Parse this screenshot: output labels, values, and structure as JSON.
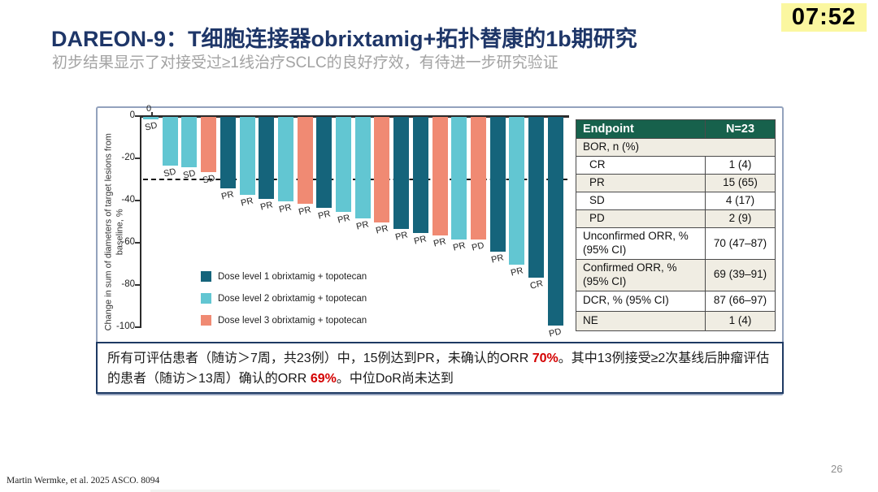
{
  "timer": "07:52",
  "slide": {
    "title": "DAREON-9：T细胞连接器obrixtamig+拓扑替康的1b期研究",
    "subtitle": "初步结果显示了对接受过≥1线治疗SCLC的良好疗效，有待进一步研究验证",
    "footer_citation": "Martin Wermke, et al. 2025 ASCO. 8094",
    "page_number": "26"
  },
  "chart_data": {
    "type": "bar",
    "subtype": "waterfall",
    "ylabel": "Change in sum of diameters of target lesions from baseline, %",
    "ylim": [
      -100,
      0
    ],
    "yticks": [
      0,
      -20,
      -40,
      -60,
      -80,
      -100
    ],
    "reference_line": -30,
    "origin_tick_label": "0",
    "dose_colors": {
      "1": "#15647b",
      "2": "#62c6d2",
      "3": "#f08a73"
    },
    "bars": [
      {
        "value": -1,
        "grade": "SD",
        "dose": 2
      },
      {
        "value": -23,
        "grade": "SD",
        "dose": 2
      },
      {
        "value": -24,
        "grade": "SD",
        "dose": 2
      },
      {
        "value": -26,
        "grade": "SD",
        "dose": 3
      },
      {
        "value": -34,
        "grade": "PR",
        "dose": 1
      },
      {
        "value": -37,
        "grade": "PR",
        "dose": 2
      },
      {
        "value": -39,
        "grade": "PR",
        "dose": 1
      },
      {
        "value": -40,
        "grade": "PR",
        "dose": 2
      },
      {
        "value": -41,
        "grade": "PR",
        "dose": 3
      },
      {
        "value": -43,
        "grade": "PR",
        "dose": 1
      },
      {
        "value": -45,
        "grade": "PR",
        "dose": 2
      },
      {
        "value": -48,
        "grade": "PR",
        "dose": 2
      },
      {
        "value": -50,
        "grade": "PR",
        "dose": 3
      },
      {
        "value": -53,
        "grade": "PR",
        "dose": 1
      },
      {
        "value": -55,
        "grade": "PR",
        "dose": 1
      },
      {
        "value": -56,
        "grade": "PR",
        "dose": 3
      },
      {
        "value": -58,
        "grade": "PR",
        "dose": 2
      },
      {
        "value": -58,
        "grade": "PD",
        "dose": 3
      },
      {
        "value": -64,
        "grade": "PR",
        "dose": 1
      },
      {
        "value": -70,
        "grade": "PR",
        "dose": 2
      },
      {
        "value": -76,
        "grade": "CR",
        "dose": 1
      },
      {
        "value": -99,
        "grade": "PD",
        "dose": 1
      }
    ],
    "legend": [
      {
        "label": "Dose level 1 obrixtamig + topotecan",
        "color": "#15647b"
      },
      {
        "label": "Dose level 2 obrixtamig + topotecan",
        "color": "#62c6d2"
      },
      {
        "label": "Dose level 3 obrixtamig + topotecan",
        "color": "#f08a73"
      }
    ],
    "legend_position": "lower-left-inside"
  },
  "table": {
    "header": [
      "Endpoint",
      "N=23"
    ],
    "rows": [
      {
        "label": "BOR, n (%)",
        "value": "",
        "span": true,
        "indent": false,
        "shaded": true
      },
      {
        "label": "CR",
        "value": "1 (4)",
        "span": false,
        "indent": true,
        "shaded": false
      },
      {
        "label": "PR",
        "value": "15 (65)",
        "span": false,
        "indent": true,
        "shaded": true
      },
      {
        "label": "SD",
        "value": "4 (17)",
        "span": false,
        "indent": true,
        "shaded": false
      },
      {
        "label": "PD",
        "value": "2 (9)",
        "span": false,
        "indent": true,
        "shaded": true
      },
      {
        "label": "Unconfirmed ORR, % (95% CI)",
        "value": "70 (47–87)",
        "span": false,
        "indent": false,
        "shaded": false
      },
      {
        "label": "Confirmed ORR, % (95% CI)",
        "value": "69 (39–91)",
        "span": false,
        "indent": false,
        "shaded": true
      },
      {
        "label": "DCR, % (95% CI)",
        "value": "87 (66–97)",
        "span": false,
        "indent": false,
        "shaded": false
      },
      {
        "label": "NE",
        "value": "1 (4)",
        "span": false,
        "indent": false,
        "shaded": true
      }
    ]
  },
  "summary_box": {
    "segments": [
      {
        "text": "所有可评估患者（随访＞7周，共23例）中，15例达到PR，未确认的ORR ",
        "style": "normal"
      },
      {
        "text": "70%",
        "style": "red"
      },
      {
        "text": "。其中13例接受≥2次基线后肿瘤评估的患者（随访＞13周）确认的ORR ",
        "style": "normal"
      },
      {
        "text": "69%",
        "style": "red"
      },
      {
        "text": "。中位DoR尚未达到",
        "style": "normal"
      }
    ]
  },
  "colors": {
    "title_navy": "#1e3668",
    "subtitle_gray": "#a3a3a3",
    "timer_bg": "#fbf7a0",
    "table_header_green": "#17614c",
    "row_beige": "#f0ede3",
    "summary_border_navy": "#1e3a63",
    "highlight_red": "#d40000"
  }
}
